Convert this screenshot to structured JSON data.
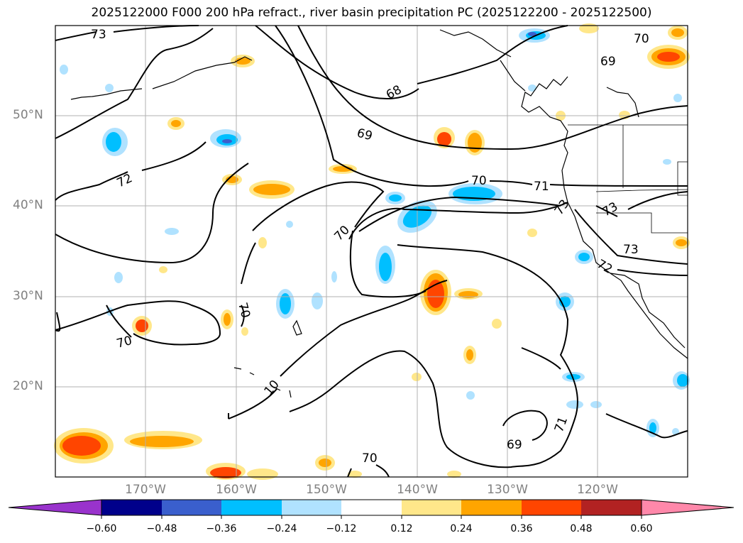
{
  "title": "2025122000 F000 200 hPa refract., river basin precipitation PC (2025122200 - 2025122500)",
  "map": {
    "lon_range": [
      -180,
      -110
    ],
    "lat_range": [
      10,
      60
    ],
    "lat_labels": [
      "50°N",
      "40°N",
      "30°N",
      "20°N"
    ],
    "lon_labels": [
      "170°W",
      "160°W",
      "150°W",
      "140°W",
      "130°W",
      "120°W"
    ],
    "contour_labels": [
      "73",
      "70",
      "69",
      "68",
      "69",
      "72",
      "70",
      "71",
      "73",
      "73",
      "73",
      "72",
      "70",
      "70",
      "70",
      "10",
      "71",
      "69",
      "70"
    ]
  },
  "colorbar": {
    "tick_labels": [
      "−0.60",
      "−0.48",
      "−0.36",
      "−0.24",
      "−0.12",
      "0.12",
      "0.24",
      "0.36",
      "0.48",
      "0.60"
    ],
    "colors": [
      "#9933cc",
      "#00008b",
      "#3a5fcd",
      "#00bfff",
      "#b0e2ff",
      "#ffffff",
      "#ffe78a",
      "#ffa500",
      "#ff4500",
      "#b22222",
      "#ff88aa"
    ]
  }
}
